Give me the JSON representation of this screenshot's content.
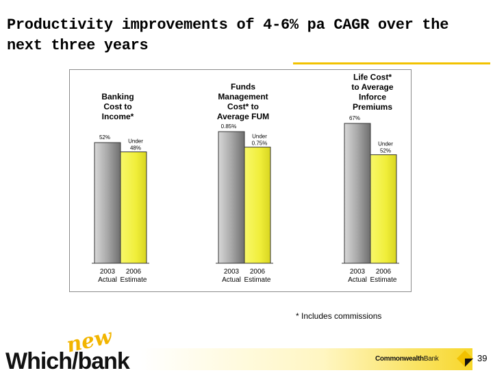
{
  "slide": {
    "title": "Productivity improvements of 4-6% pa CAGR over the next three years",
    "footnote": "* Includes commissions",
    "page_number": "39"
  },
  "branding": {
    "which_text": "Which",
    "bank_text": "bank",
    "new_text": "new",
    "company_name_bold": "Commonwealth",
    "company_name_light": "Bank"
  },
  "colors": {
    "bar_2003": "#a8a8a8",
    "bar_2006": "#f0ee3a",
    "accent": "#f2c200"
  },
  "chart_data": [
    {
      "type": "bar",
      "title": "Banking Cost to Income*",
      "categories": [
        "2003 Actual",
        "2006 Estimate"
      ],
      "values": [
        52,
        48
      ],
      "value_labels": [
        "52%",
        "Under 48%"
      ],
      "ylim": [
        0,
        52
      ]
    },
    {
      "type": "bar",
      "title": "Funds Management Cost* to Average FUM",
      "categories": [
        "2003 Actual",
        "2006 Estimate"
      ],
      "values": [
        0.85,
        0.75
      ],
      "value_labels": [
        "0.85%",
        "Under 0.75%"
      ],
      "ylim": [
        0,
        0.85
      ]
    },
    {
      "type": "bar",
      "title": "Life Cost* to Average Inforce Premiums",
      "categories": [
        "2003 Actual",
        "2006 Estimate"
      ],
      "values": [
        67,
        52
      ],
      "value_labels": [
        "67%",
        "Under 52%"
      ],
      "ylim": [
        0,
        67
      ]
    }
  ]
}
